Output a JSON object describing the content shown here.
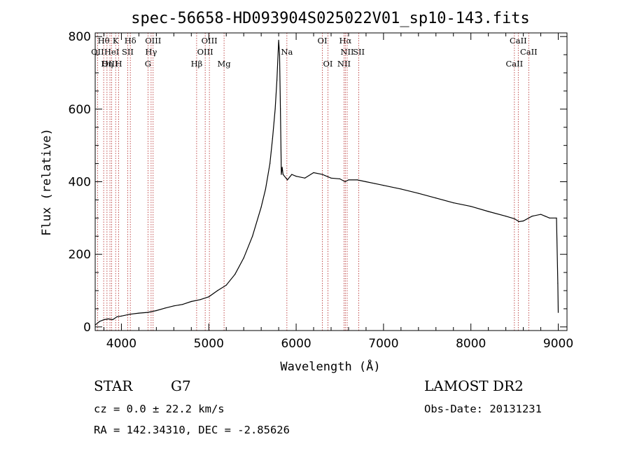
{
  "chart_data": {
    "type": "line",
    "title": "spec-56658-HD093904S025022V01_sp10-143.fits",
    "xlabel": "Wavelength (Å)",
    "ylabel": "Flux (relative)",
    "xlim": [
      3700,
      9100
    ],
    "ylim": [
      -10,
      810
    ],
    "x_ticks": [
      4000,
      5000,
      6000,
      7000,
      8000,
      9000
    ],
    "y_ticks": [
      0,
      200,
      400,
      600,
      800
    ],
    "grid": false,
    "series": [
      {
        "color": "#000000",
        "x": [
          3700,
          3750,
          3800,
          3850,
          3900,
          3950,
          4000,
          4100,
          4200,
          4300,
          4400,
          4500,
          4600,
          4700,
          4800,
          4900,
          5000,
          5100,
          5200,
          5300,
          5400,
          5500,
          5600,
          5650,
          5700,
          5730,
          5760,
          5780,
          5800,
          5810,
          5820,
          5830,
          5840,
          5850,
          5900,
          5950,
          6000,
          6100,
          6200,
          6300,
          6400,
          6500,
          6560,
          6600,
          6700,
          6800,
          6900,
          7000,
          7200,
          7400,
          7600,
          7800,
          8000,
          8200,
          8400,
          8500,
          8550,
          8600,
          8700,
          8800,
          8850,
          8900,
          8980,
          8995,
          9000
        ],
        "y": [
          5,
          15,
          20,
          22,
          20,
          28,
          30,
          35,
          38,
          40,
          45,
          52,
          58,
          62,
          70,
          75,
          83,
          100,
          115,
          145,
          190,
          250,
          330,
          380,
          450,
          520,
          600,
          680,
          790,
          750,
          600,
          420,
          440,
          420,
          405,
          420,
          415,
          410,
          425,
          420,
          410,
          408,
          400,
          405,
          405,
          400,
          395,
          390,
          380,
          368,
          355,
          342,
          332,
          318,
          305,
          298,
          290,
          292,
          305,
          310,
          305,
          300,
          300,
          120,
          40
        ]
      }
    ],
    "line_markers": [
      {
        "label": "Hθ",
        "x": 3797,
        "row": 1
      },
      {
        "label": "OII",
        "x": 3727,
        "row": 2
      },
      {
        "label": "OIII",
        "x": 3869,
        "row": 3
      },
      {
        "label": "K",
        "x": 3934,
        "row": 1
      },
      {
        "label": "HeI",
        "x": 3889,
        "row": 2
      },
      {
        "label": "Hη",
        "x": 3835,
        "row": 3
      },
      {
        "label": "Hδ",
        "x": 4102,
        "row": 1
      },
      {
        "label": "SII",
        "x": 4072,
        "row": 2
      },
      {
        "label": "H",
        "x": 3969,
        "row": 3
      },
      {
        "label": "OIII",
        "x": 4363,
        "row": 1
      },
      {
        "label": "Hγ",
        "x": 4340,
        "row": 2
      },
      {
        "label": "G",
        "x": 4304,
        "row": 3
      },
      {
        "label": "OIII",
        "x": 5007,
        "row": 1
      },
      {
        "label": "OIII",
        "x": 4959,
        "row": 2
      },
      {
        "label": "Hβ",
        "x": 4861,
        "row": 3
      },
      {
        "label": "Mg",
        "x": 5175,
        "row": 3
      },
      {
        "label": "Na",
        "x": 5894,
        "row": 2
      },
      {
        "label": "OI",
        "x": 6300,
        "row": 1
      },
      {
        "label": "OI",
        "x": 6364,
        "row": 3
      },
      {
        "label": "Hα",
        "x": 6563,
        "row": 1
      },
      {
        "label": "NII",
        "x": 6584,
        "row": 2
      },
      {
        "label": "SII",
        "x": 6717,
        "row": 2
      },
      {
        "label": "NII",
        "x": 6548,
        "row": 3
      },
      {
        "label": "CaII",
        "x": 8542,
        "row": 1
      },
      {
        "label": "CaII",
        "x": 8662,
        "row": 2
      },
      {
        "label": "CaII",
        "x": 8498,
        "row": 3
      }
    ],
    "marker_color": "#b22222"
  },
  "info": {
    "object_class": "STAR",
    "subclass": "G7",
    "survey": "LAMOST DR2",
    "cz": "cz = 0.0 ± 22.2 km/s",
    "obs_date": "Obs-Date: 20131231",
    "coords": "RA = 142.34310, DEC =  -2.85626"
  }
}
